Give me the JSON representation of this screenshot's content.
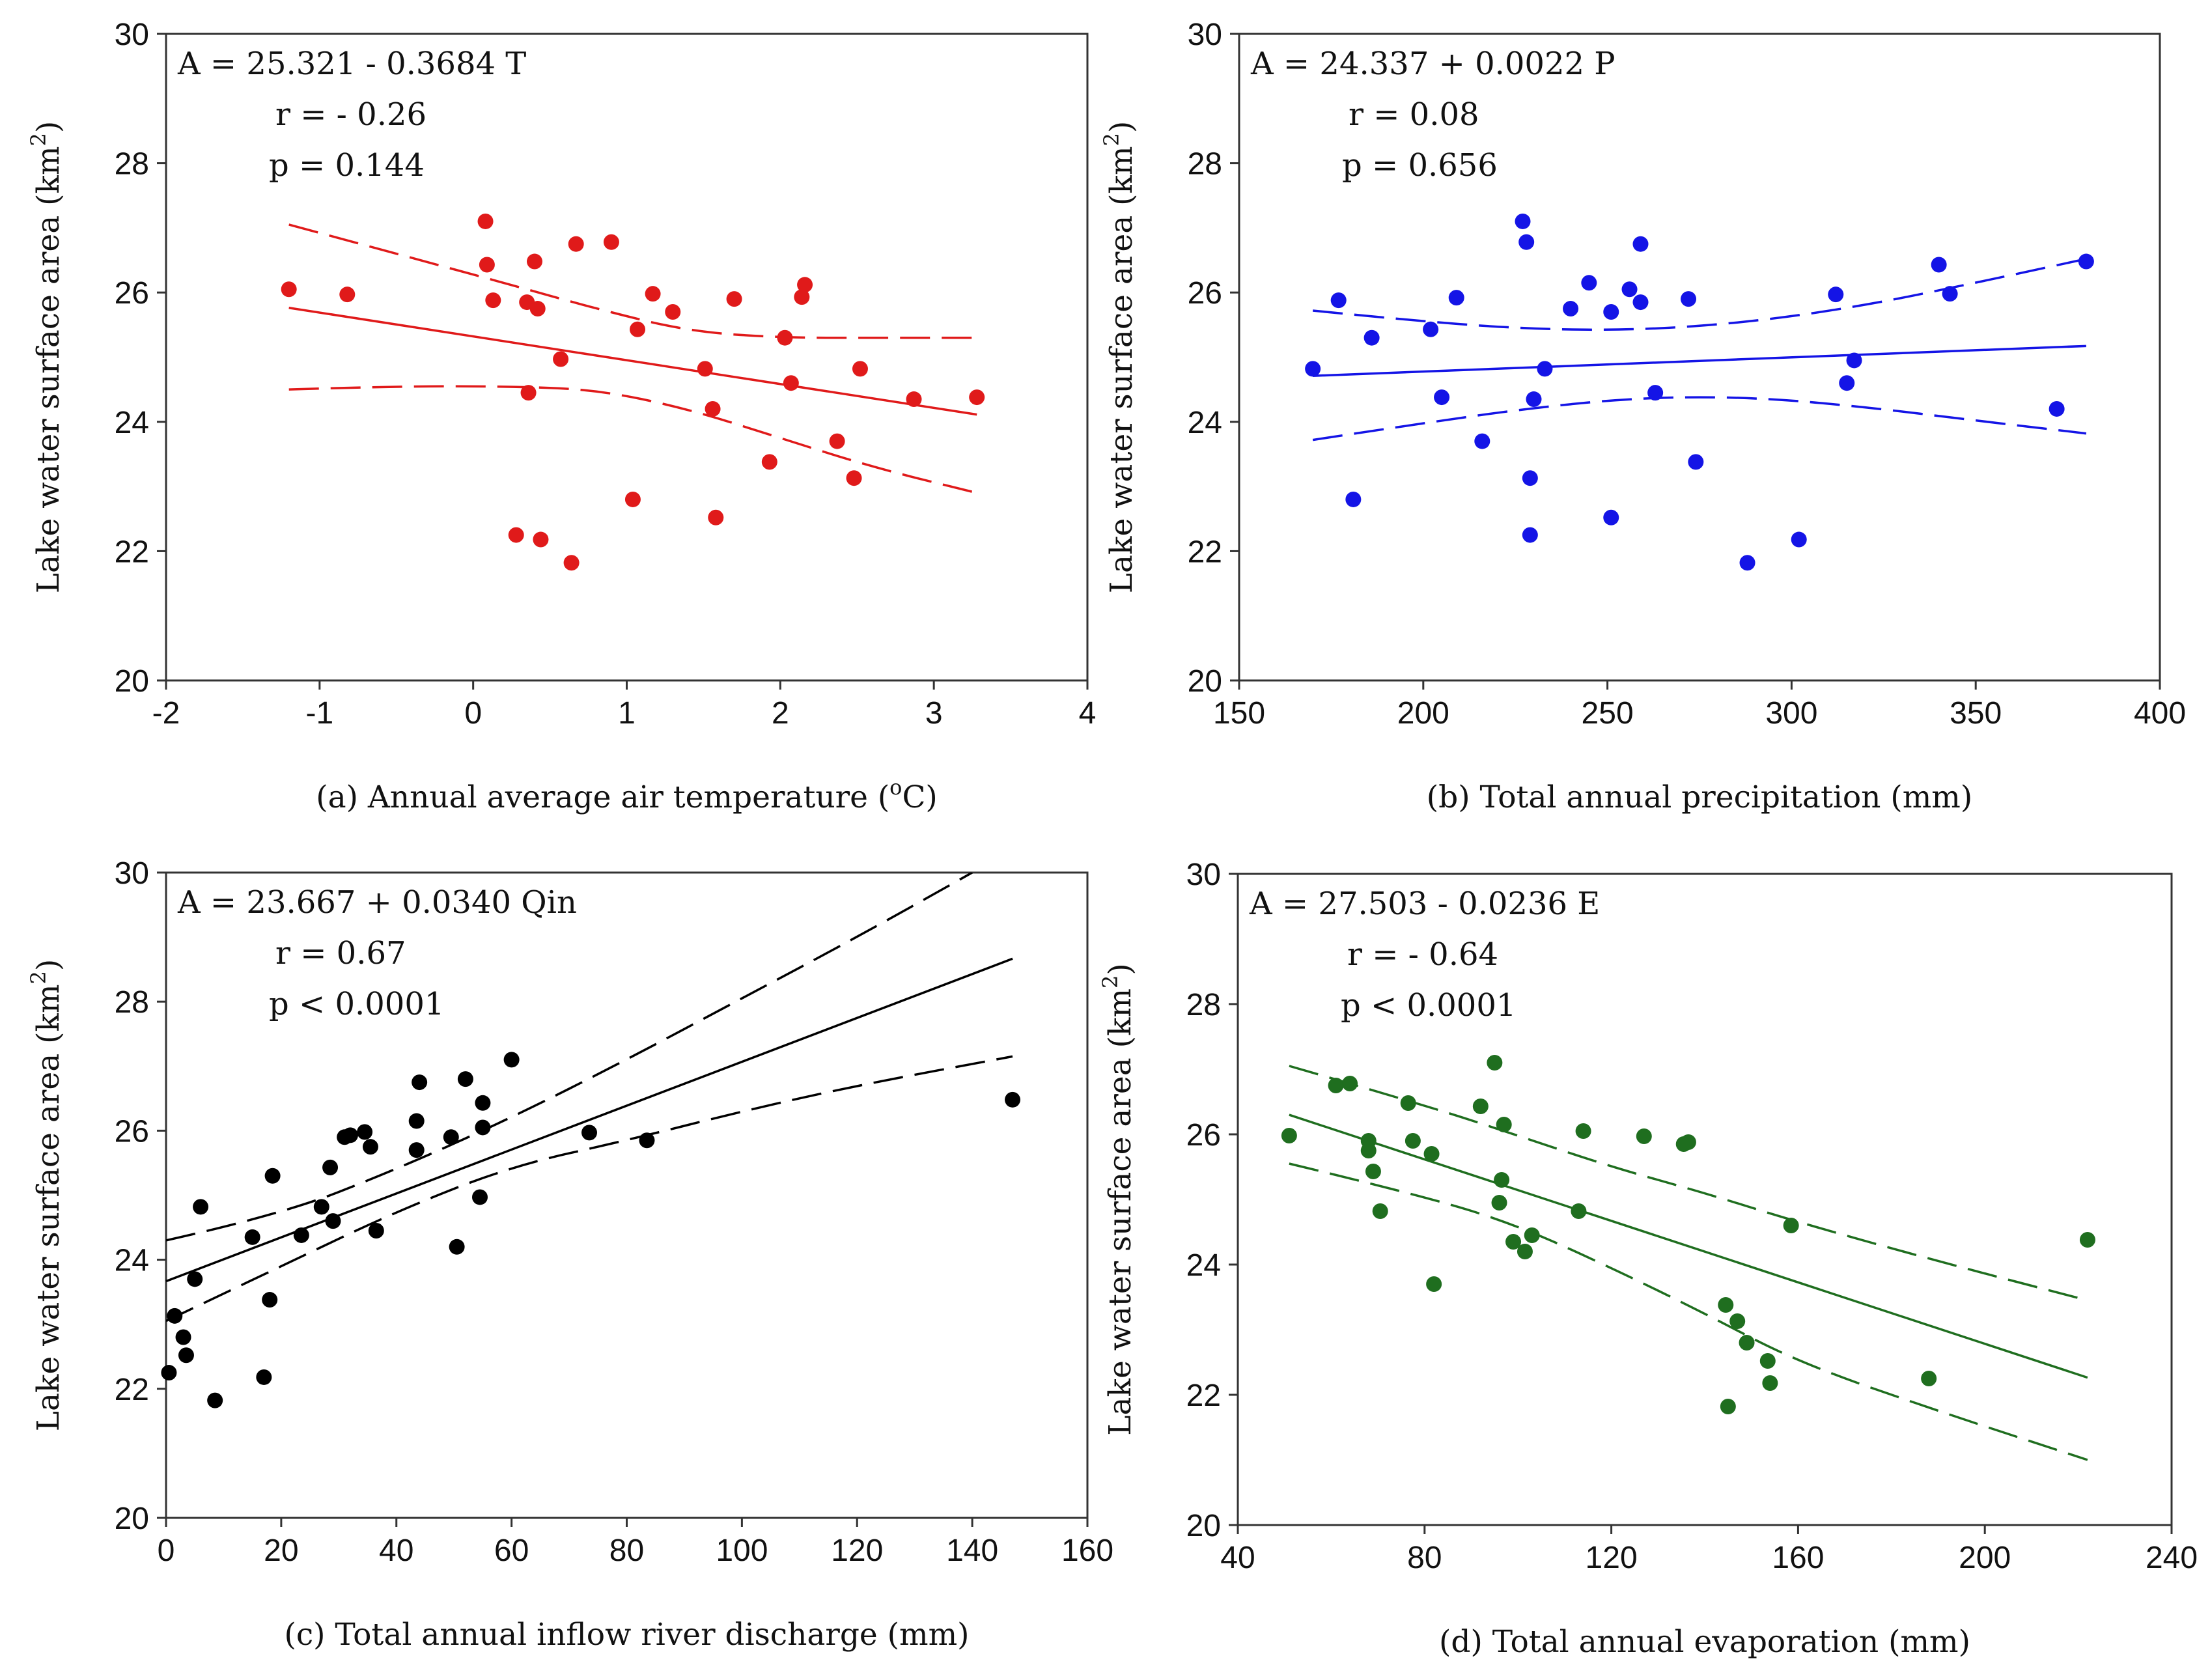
{
  "chart_data": [
    {
      "id": "a",
      "type": "scatter",
      "color": "#e01a1a",
      "xlabel": "(a) Annual average air temperature (",
      "xlabel_sup": "o",
      "xlabel_end": "C)",
      "ylabel": "Lake water surface area (km",
      "ylabel_sup": "2",
      "ylabel_end": ")",
      "xlim": [
        -2,
        4
      ],
      "ylim": [
        20,
        30
      ],
      "xticks": [
        "-2",
        "-1",
        "0",
        "1",
        "2",
        "3",
        "4"
      ],
      "yticks": [
        "20",
        "22",
        "24",
        "26",
        "28",
        "30"
      ],
      "equation": "A = 25.321 - 0.3684 T",
      "r": "r = - 0.26",
      "p": "p = 0.144",
      "fit": {
        "intercept": 25.321,
        "slope": -0.3684,
        "x": [
          -1.2,
          3.28
        ]
      },
      "ci_upper": [
        [
          -1.2,
          27.05
        ],
        [
          -0.5,
          26.6
        ],
        [
          0.2,
          26.15
        ],
        [
          0.8,
          25.75
        ],
        [
          1.4,
          25.4
        ],
        [
          2.0,
          25.3
        ],
        [
          2.6,
          25.3
        ],
        [
          3.28,
          25.3
        ]
      ],
      "ci_lower": [
        [
          -1.2,
          24.5
        ],
        [
          -0.5,
          24.55
        ],
        [
          0.2,
          24.55
        ],
        [
          0.8,
          24.5
        ],
        [
          1.4,
          24.2
        ],
        [
          2.0,
          23.75
        ],
        [
          2.6,
          23.3
        ],
        [
          3.28,
          22.9
        ]
      ],
      "points": [
        [
          -1.2,
          26.05
        ],
        [
          -0.82,
          25.97
        ],
        [
          0.08,
          27.1
        ],
        [
          0.09,
          26.43
        ],
        [
          0.13,
          25.88
        ],
        [
          0.35,
          25.85
        ],
        [
          0.4,
          26.48
        ],
        [
          0.42,
          25.75
        ],
        [
          0.36,
          24.45
        ],
        [
          0.28,
          22.25
        ],
        [
          0.44,
          22.18
        ],
        [
          0.57,
          24.97
        ],
        [
          0.64,
          21.82
        ],
        [
          0.67,
          26.75
        ],
        [
          0.9,
          26.78
        ],
        [
          1.04,
          22.8
        ],
        [
          1.07,
          25.43
        ],
        [
          1.17,
          25.98
        ],
        [
          1.3,
          25.7
        ],
        [
          1.51,
          24.82
        ],
        [
          1.56,
          24.2
        ],
        [
          1.58,
          22.52
        ],
        [
          1.7,
          25.9
        ],
        [
          1.93,
          23.38
        ],
        [
          2.03,
          25.3
        ],
        [
          2.07,
          24.6
        ],
        [
          2.14,
          25.93
        ],
        [
          2.16,
          26.12
        ],
        [
          2.37,
          23.7
        ],
        [
          2.48,
          23.13
        ],
        [
          2.52,
          24.82
        ],
        [
          2.87,
          24.35
        ],
        [
          3.28,
          24.38
        ]
      ]
    },
    {
      "id": "b",
      "type": "scatter",
      "color": "#1414e6",
      "xlabel": "(b) Total annual precipitation (mm)",
      "ylabel": "Lake water surface area (km",
      "ylabel_sup": "2",
      "ylabel_end": ")",
      "xlim": [
        150,
        400
      ],
      "ylim": [
        20,
        30
      ],
      "xticks": [
        "150",
        "200",
        "250",
        "300",
        "350",
        "400"
      ],
      "yticks": [
        "20",
        "22",
        "24",
        "26",
        "28",
        "30"
      ],
      "equation": "A = 24.337 + 0.0022 P",
      "r": "r = 0.08",
      "p": "p = 0.656",
      "fit": {
        "intercept": 24.337,
        "slope": 0.0022,
        "x": [
          170,
          380
        ]
      },
      "ci_upper": [
        [
          170,
          25.72
        ],
        [
          200,
          25.55
        ],
        [
          230,
          25.43
        ],
        [
          260,
          25.42
        ],
        [
          290,
          25.55
        ],
        [
          320,
          25.8
        ],
        [
          350,
          26.15
        ],
        [
          380,
          26.52
        ]
      ],
      "ci_lower": [
        [
          170,
          23.72
        ],
        [
          200,
          23.98
        ],
        [
          230,
          24.22
        ],
        [
          260,
          24.38
        ],
        [
          290,
          24.38
        ],
        [
          320,
          24.23
        ],
        [
          350,
          24.02
        ],
        [
          380,
          23.82
        ]
      ],
      "points": [
        [
          170,
          24.82
        ],
        [
          177,
          25.88
        ],
        [
          181,
          22.8
        ],
        [
          186,
          25.3
        ],
        [
          202,
          25.43
        ],
        [
          205,
          24.38
        ],
        [
          209,
          25.92
        ],
        [
          216,
          23.7
        ],
        [
          227,
          27.1
        ],
        [
          228,
          26.78
        ],
        [
          229,
          23.13
        ],
        [
          229,
          22.25
        ],
        [
          230,
          24.35
        ],
        [
          233,
          24.82
        ],
        [
          240,
          25.75
        ],
        [
          245,
          26.15
        ],
        [
          251,
          25.7
        ],
        [
          251,
          22.52
        ],
        [
          256,
          26.05
        ],
        [
          259,
          25.85
        ],
        [
          259,
          26.75
        ],
        [
          263,
          24.45
        ],
        [
          272,
          25.9
        ],
        [
          274,
          23.38
        ],
        [
          288,
          21.82
        ],
        [
          302,
          22.18
        ],
        [
          312,
          25.97
        ],
        [
          315,
          24.6
        ],
        [
          317,
          24.95
        ],
        [
          340,
          26.43
        ],
        [
          343,
          25.98
        ],
        [
          372,
          24.2
        ],
        [
          380,
          26.48
        ]
      ]
    },
    {
      "id": "c",
      "type": "scatter",
      "color": "#000000",
      "xlabel": "(c) Total annual inflow river discharge (mm)",
      "ylabel": "Lake water surface area (km",
      "ylabel_sup": "2",
      "ylabel_end": ")",
      "xlim": [
        0,
        160
      ],
      "ylim": [
        20,
        30
      ],
      "xticks": [
        "0",
        "20",
        "40",
        "60",
        "80",
        "100",
        "120",
        "140",
        "160"
      ],
      "yticks": [
        "20",
        "22",
        "24",
        "26",
        "28",
        "30"
      ],
      "equation": "A = 23.667 + 0.0340 Qin",
      "r": "r = 0.67",
      "p": "p < 0.0001",
      "fit": {
        "intercept": 23.667,
        "slope": 0.034,
        "x": [
          0,
          147
        ]
      },
      "ci_upper": [
        [
          0,
          24.3
        ],
        [
          20,
          24.7
        ],
        [
          40,
          25.4
        ],
        [
          60,
          26.2
        ],
        [
          80,
          27.1
        ],
        [
          100,
          28.05
        ],
        [
          120,
          29.0
        ],
        [
          140,
          30.0
        ]
      ],
      "ci_lower": [
        [
          0,
          23.05
        ],
        [
          20,
          23.9
        ],
        [
          40,
          24.75
        ],
        [
          60,
          25.45
        ],
        [
          80,
          25.85
        ],
        [
          100,
          26.3
        ],
        [
          120,
          26.7
        ],
        [
          147,
          27.15
        ]
      ],
      "points": [
        [
          0.5,
          22.25
        ],
        [
          1.5,
          23.13
        ],
        [
          3,
          22.8
        ],
        [
          3.5,
          22.52
        ],
        [
          5,
          23.7
        ],
        [
          6,
          24.82
        ],
        [
          8.5,
          21.82
        ],
        [
          15,
          24.35
        ],
        [
          17,
          22.18
        ],
        [
          18,
          23.38
        ],
        [
          18.5,
          25.3
        ],
        [
          23.5,
          24.38
        ],
        [
          27,
          24.82
        ],
        [
          28.5,
          25.43
        ],
        [
          29,
          24.6
        ],
        [
          31,
          25.9
        ],
        [
          32,
          25.93
        ],
        [
          34.5,
          25.98
        ],
        [
          35.5,
          25.75
        ],
        [
          36.5,
          24.45
        ],
        [
          43.5,
          25.7
        ],
        [
          43.5,
          26.15
        ],
        [
          44,
          26.75
        ],
        [
          49.5,
          25.9
        ],
        [
          50.5,
          24.2
        ],
        [
          52,
          26.8
        ],
        [
          54.5,
          24.97
        ],
        [
          55,
          26.43
        ],
        [
          55,
          26.05
        ],
        [
          60,
          27.1
        ],
        [
          73.5,
          25.97
        ],
        [
          83.5,
          25.85
        ],
        [
          147,
          26.48
        ]
      ]
    },
    {
      "id": "d",
      "type": "scatter",
      "color": "#1f6e1f",
      "xlabel": "(d) Total annual evaporation (mm)",
      "ylabel": "Lake water surface area (km",
      "ylabel_sup": "2",
      "ylabel_end": ")",
      "xlim": [
        40,
        240
      ],
      "ylim": [
        20,
        30
      ],
      "xticks": [
        "40",
        "80",
        "120",
        "160",
        "200",
        "240"
      ],
      "yticks": [
        "20",
        "22",
        "24",
        "26",
        "28",
        "30"
      ],
      "equation": "A = 27.503 - 0.0236 E",
      "r": "r = - 0.64",
      "p": "p < 0.0001",
      "fit": {
        "intercept": 27.503,
        "slope": -0.0236,
        "x": [
          51,
          222
        ]
      },
      "ci_upper": [
        [
          51,
          27.05
        ],
        [
          80,
          26.45
        ],
        [
          100,
          25.98
        ],
        [
          120,
          25.5
        ],
        [
          140,
          25.1
        ],
        [
          160,
          24.65
        ],
        [
          190,
          24.05
        ],
        [
          222,
          23.45
        ]
      ],
      "ci_lower": [
        [
          51,
          25.55
        ],
        [
          80,
          25.05
        ],
        [
          100,
          24.6
        ],
        [
          120,
          23.95
        ],
        [
          140,
          23.25
        ],
        [
          160,
          22.5
        ],
        [
          190,
          21.75
        ],
        [
          222,
          21.0
        ]
      ],
      "points": [
        [
          51,
          25.98
        ],
        [
          61,
          26.75
        ],
        [
          64,
          26.78
        ],
        [
          68,
          25.9
        ],
        [
          68,
          25.75
        ],
        [
          69,
          25.43
        ],
        [
          70.5,
          24.82
        ],
        [
          76.5,
          26.48
        ],
        [
          77.5,
          25.9
        ],
        [
          81.5,
          25.7
        ],
        [
          82,
          23.7
        ],
        [
          92,
          26.43
        ],
        [
          95,
          27.1
        ],
        [
          96,
          24.95
        ],
        [
          96.5,
          25.3
        ],
        [
          97,
          26.15
        ],
        [
          99,
          24.35
        ],
        [
          101.5,
          24.2
        ],
        [
          103,
          24.45
        ],
        [
          113,
          24.82
        ],
        [
          114,
          26.05
        ],
        [
          127,
          25.97
        ],
        [
          135.5,
          25.85
        ],
        [
          136.5,
          25.88
        ],
        [
          144.5,
          23.38
        ],
        [
          145,
          21.82
        ],
        [
          147,
          23.13
        ],
        [
          149,
          22.8
        ],
        [
          153.5,
          22.52
        ],
        [
          154,
          22.18
        ],
        [
          158.5,
          24.6
        ],
        [
          188,
          22.25
        ],
        [
          222,
          24.38
        ]
      ]
    }
  ]
}
